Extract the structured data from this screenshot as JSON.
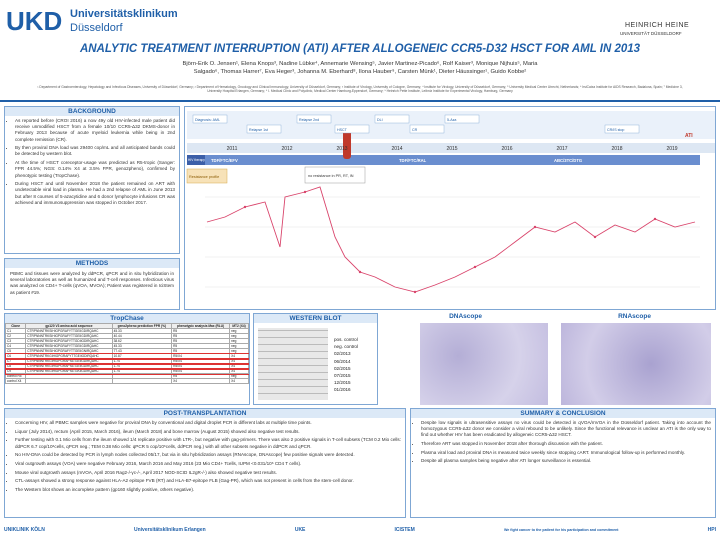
{
  "header": {
    "logo_left": "UKD",
    "logo_left_name": "Universitätsklinikum",
    "logo_left_city": "Düsseldorf",
    "logo_right": "HEINRICH HEINE",
    "logo_right_sub": "UNIVERSITÄT DÜSSELDORF",
    "title": "ANALYTIC TREATMENT INTERRUPTION (ATI) AFTER ALLOGENEIC CCR5-D32 HSCT FOR AML IN 2013",
    "authors": "Björn-Erik O. Jensen¹, Elena Knops³, Nadine Lübke⁴, Annemarie Wensing⁵, Javier Martinez-Picado⁶, Rolf Kaiser³, Monique Nijhuis⁵, Maria Salgado⁶, Thomas Harrer⁷, Eva Heger³, Johanna M. Eberhard⁸, Ilona Hauber⁹, Carsten Münk¹, Dieter Häussinger¹, Guido Kobbe²",
    "affiliations": "¹ Department of Gastroenterology, Hepatology and Infectious Diseases, University of Düsseldorf, Germany; ² Department of Hematology, Oncology and Clinical Immunology, University of Düsseldorf, Germany; ³ Institute of Virology, University of Cologne, Germany; ⁴ Institute for Virology, University of Düsseldorf, Germany; ⁵ University Medical Center Utrecht, Netherlands; ⁶ IrsiCaixa Institute for AIDS Research, Badalona, Spain; ⁷ Medicine 3, University Hospital Erlangen, Germany; ⁸ I. Medical Clinic and Polyclinic, Medical Center Hamburg-Eppendorf, Germany; ⁹ Heinrich Pette Institute, Leibniz Institute for Experimental Virology, Hamburg, Germany"
  },
  "background": {
    "title": "BACKGROUND",
    "bullets": [
      "As reported before (CROI 2016) a now 49y old HIV-infected male patient did receive unmodified HSCT from a female 10/10 CCR5-Δ32 DKMS-donor in February 2013 because of acute myeloid leukemia while being in 2nd complete remission (CR).",
      "By then proviral DNA load was 29400 cop/mL and all anticipated bands could be detected by western blot.",
      "At the time of HSCT coreceptor-usage was predicted as R5-tropic (Sanger: FPR 44.5%; NGS: 0.14% X4 at 3.5% FPR, geno2pheno), confirmed by phenotypic testing (TropChase).",
      "During HSCT and until November 2018 the patient remained on ART with undetectable viral load in plasma. He had a 2nd relapse of AML in June 2013 but after 8 courses of 5-azacytidine and 6 donor lymphocyte infusions CR was achieved and immunosuppression was stopped in October 2017."
    ]
  },
  "methods": {
    "title": "METHODS",
    "text": "PBMC and tissues were analyzed by ddPCR, qPCR and in situ hybridization in several laboratories as well as humanized and T-cell responses. Infectious virus was analyzed on CD4+ T-cells (qVOA, MVOA); Patient was registered in IciStem as patient #19."
  },
  "timeline": {
    "years": [
      "2011",
      "2012",
      "2013",
      "2014",
      "2015",
      "2016",
      "2017",
      "2018",
      "2019"
    ],
    "events": [
      "Diagnosis: AML",
      "Relapse 1st",
      "Relapse 2nd",
      "HSCT",
      "DLI",
      "CR",
      "5-Aza",
      "CR/IS stop"
    ],
    "therapy_label": "HIV therapy",
    "regimens": [
      "TDF/FTC/EFV",
      "TDF/FTC/RAL",
      "ABC/3TC/DTG"
    ],
    "resistance_label": "Resistance profile",
    "resistance_note": "no resistance in PR, RT, IN",
    "ati_label": "ATI"
  },
  "tropchase": {
    "title": "TropChase",
    "columns": [
      "Clone",
      "gp120 V3 amino acid sequence",
      "geno2pheno prediction FPR (%)",
      "phenotypic analysis Max (RLU)",
      "MT2 (X4)"
    ],
    "rows": [
      [
        "C1",
        "CTRPNNNTRKSIHIGPGRAFYTTGEIIGDIRQAHC",
        "45.33",
        "R5",
        "neg"
      ],
      [
        "C2",
        "CTRPNNNTRKSIHIGPGRAFYTTGEIIGDIRQAHC",
        "40.44",
        "R5",
        "neg"
      ],
      [
        "C3",
        "CTRPNNNTRKSIHIGPGRAFYTTGDIIGDIRQAHC",
        "38.62",
        "R5",
        "neg"
      ],
      [
        "C4",
        "CTRPNNNTRKSIHIGPGRAFYTTGEIIGDIRQAHC",
        "45.33",
        "R5",
        "neg"
      ],
      [
        "C5",
        "CTRPNNNTRKSIHIGPGRAFYTTGEIIGNIRQAHC",
        "77.43",
        "R5",
        "neg"
      ],
      [
        "C6",
        "CTRPNNNTRKGIHIGPGRAFYTTGEIIGDIRQAHC",
        "10.87",
        "R5/X4",
        "X4"
      ],
      [
        "C7",
        "CTRPNNNTRKGIHIGPGRAFYATGEIIGDIRQAHC",
        "1.74",
        "R5/X4",
        "X4"
      ],
      [
        "C8",
        "CTRPNNNTRKGIHIGPGRAFYATGEIIGDIRQAHC",
        "1.74",
        "R5/X4",
        "X4"
      ],
      [
        "C9",
        "CTRPNNNTRKGIHIGPGRAFYATGKIIGDIRQAHC",
        "1.74",
        "R5/X4",
        "X4"
      ],
      [
        "control R5",
        "",
        "",
        "R5",
        "neg"
      ],
      [
        "control X4",
        "",
        "",
        "X4",
        "X4"
      ]
    ]
  },
  "western_blot": {
    "title": "WESTERN BLOT",
    "labels": [
      "pos. control",
      "neg. control",
      "02/2013",
      "06/2014",
      "02/2015",
      "07/2015",
      "12/2015",
      "01/2016"
    ]
  },
  "dnascope": {
    "title": "DNAscope"
  },
  "rnascope": {
    "title": "RNAscope"
  },
  "post": {
    "title": "POST-TRANSPLANTATION",
    "bullets": [
      "Concerning HIV, all PBMC samples were negative for proviral DNA by conventional and digital droplet PCR in different labs at multiple time points.",
      "Liquor (July 2014), rectum (April 2015, March 2016), ileum (March 2018) and bone marrow (August 2015) showed also negative test results.",
      "Further testing with 0.1 Mio cells from the ileum showed 1/4 replicate positive with LTR-, but negative with gag-primers. There was also 2 positive signals in T-cell subsets (TCM 0.2 Mio cells: ddPCR 6.7 cop/10⁶cells, qPCR neg.; TEM 0.38 Mio cells: qPCR 5 cop/10⁶cells, ddPCR neg.) with all other subsets negative in ddPCR and qPCR.",
      "No HIV-DNA could be detected by PCR in lymph nodes collected 05/17, but via in situ hybridization assays (RNAscope, DNAscope) few positive signals were detected.",
      "Viral outgrowth assays (VOA) were negative February 2016, March 2016 and May 2016 (23 Mio CD4+ Tcells, IUPM <0.031/10⁶ CD4 T cells).",
      "Mouse viral outgrowth assays (mVOA, April 2016 Rag2-/-γc-/-, April 2017 NOD-SCID IL2gR-/-) also showed negative test results.",
      "CTL-assays showed a strong response against HLA-A2 epitope FVB (RT) and HLA-B7-epitope FLB (Gag-PR), which was not present in cells from the stem-cell donor.",
      "The Western blot shows an incomplete pattern (gp160 slightly positive, others negative)."
    ]
  },
  "summary": {
    "title": "SUMMARY & CONCLUSION",
    "bullets": [
      "Despite low signals in ultrasensitive assays no virus could be detected in qVOA/mVOA in the Düsseldorf patient. Taking into account the homozygous CCR5-Δ32 donor we consider a viral rebound to be unlikely. Since the functional relevance is unclear an ATI is the only way to find out whether HIV has been eradicated by allogeneic CCR5-Δ32 HSCT.",
      "Therefore ART was stopped in November 2018 after thorough discussion with the patient.",
      "Plasma viral load and proviral DNA is measured twice weekly since stopping cART. Immunological follow-up is performed monthly.",
      "Despite all plasma samples being negative after ATI longer surveillance is essential."
    ]
  },
  "footer": {
    "logos": [
      "UNIKLINIK KÖLN",
      "Universitätsklinikum Erlangen",
      "UKE",
      "ICISTEM",
      "We fight cancer to the patient for his participation and commitment",
      "HPI"
    ]
  }
}
